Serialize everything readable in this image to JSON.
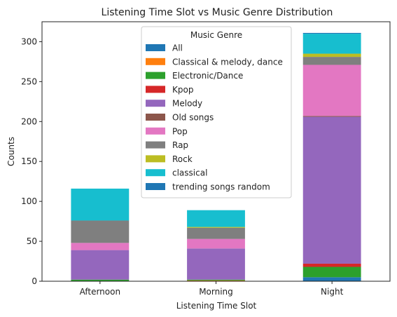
{
  "chart_data": {
    "type": "bar",
    "stacked": true,
    "title": "Listening Time Slot vs Music Genre Distribution",
    "xlabel": "Listening Time Slot",
    "ylabel": "Counts",
    "ylim": [
      0,
      325
    ],
    "yticks": [
      "0",
      "50",
      "100",
      "150",
      "200",
      "250",
      "300"
    ],
    "categories": [
      "Afternoon",
      "Morning",
      "Night"
    ],
    "legend_title": "Music Genre",
    "legend_position": "top-center",
    "series": [
      {
        "name": "All",
        "color": "#1f77b4",
        "values": [
          0,
          0,
          5
        ]
      },
      {
        "name": "Classical & melody, dance",
        "color": "#ff7f0e",
        "values": [
          0,
          1,
          0
        ]
      },
      {
        "name": "Electronic/Dance",
        "color": "#2ca02c",
        "values": [
          2,
          1,
          13
        ]
      },
      {
        "name": "Kpop",
        "color": "#d62728",
        "values": [
          0,
          0,
          4
        ]
      },
      {
        "name": "Melody",
        "color": "#9467bd",
        "values": [
          37,
          39,
          184
        ]
      },
      {
        "name": "Old songs",
        "color": "#8c564b",
        "values": [
          0,
          0,
          1
        ]
      },
      {
        "name": "Pop",
        "color": "#e377c2",
        "values": [
          9,
          12,
          64
        ]
      },
      {
        "name": "Rap",
        "color": "#7f7f7f",
        "values": [
          28,
          14,
          10
        ]
      },
      {
        "name": "Rock",
        "color": "#bcbd22",
        "values": [
          0,
          1,
          4
        ]
      },
      {
        "name": "classical",
        "color": "#17becf",
        "values": [
          40,
          21,
          25
        ]
      },
      {
        "name": "trending songs random",
        "color": "#1f77b4",
        "values": [
          0,
          0,
          1
        ]
      }
    ]
  }
}
